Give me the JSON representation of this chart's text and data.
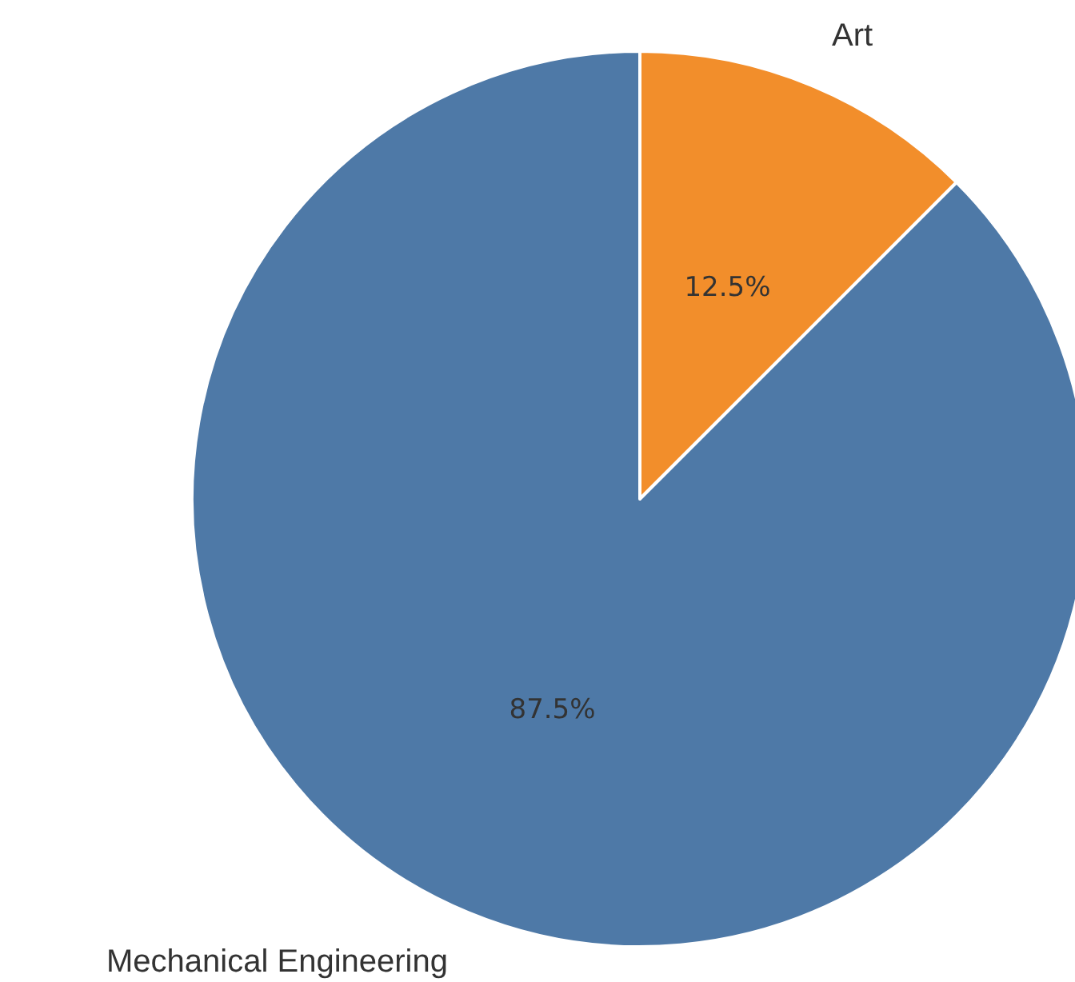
{
  "chart_data": {
    "type": "pie",
    "categories": [
      "Art",
      "Mechanical Engineering"
    ],
    "values": [
      12.5,
      87.5
    ],
    "colors": [
      "#f28e2b",
      "#4e79a7"
    ],
    "value_labels": [
      "12.5%",
      "87.5%"
    ]
  }
}
